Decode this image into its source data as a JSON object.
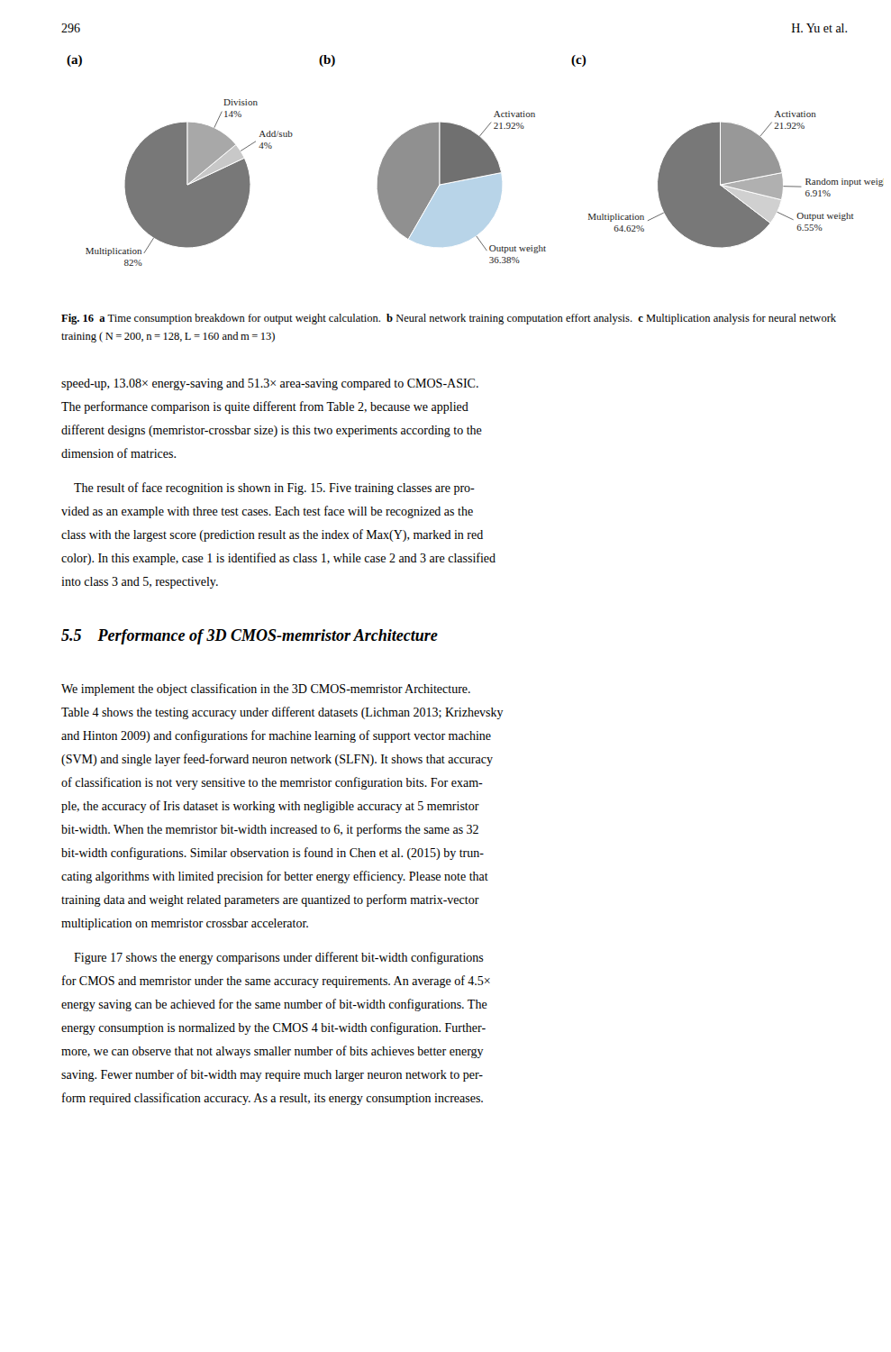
{
  "header": {
    "page_number": "296",
    "running_head": "H. Yu et al."
  },
  "chart_data": [
    {
      "type": "pie",
      "title": "(a)",
      "categories": [
        "Multiplication",
        "Add/sub",
        "Division"
      ],
      "values": [
        82,
        4,
        14
      ],
      "value_labels": [
        "82%",
        "4%",
        "14%"
      ],
      "colors": [
        "#787878",
        "#c8c8c8",
        "#a8a8a8"
      ],
      "data_labels": true
    },
    {
      "type": "pie",
      "title": "(b)",
      "categories": [
        null,
        "Output weight",
        "Activation"
      ],
      "values": [
        41.7,
        36.38,
        21.92
      ],
      "value_labels": [
        null,
        "36.38%",
        "21.92%"
      ],
      "colors": [
        "#909090",
        "#b8d4e8",
        "#707070"
      ],
      "data_labels": true
    },
    {
      "type": "pie",
      "title": "(c)",
      "categories": [
        "Multiplication",
        "Output weight",
        "Random input weight",
        "Activation"
      ],
      "values": [
        64.62,
        6.55,
        6.91,
        21.92
      ],
      "value_labels": [
        "64.62%",
        "6.55%",
        "6.91%",
        "21.92%"
      ],
      "colors": [
        "#787878",
        "#d0d0d0",
        "#b0b0b0",
        "#989898"
      ],
      "data_labels": true
    }
  ],
  "caption": {
    "label": "Fig. 16",
    "parts": [
      {
        "label": "a",
        "text": "Time consumption breakdown for output weight calculation."
      },
      {
        "label": "b",
        "text": "Neural network training computation effort analysis."
      },
      {
        "label": "c",
        "text": "Multiplication analysis for neural network training ( N = 200, n = 128, L = 160 and m = 13)"
      }
    ]
  },
  "paragraphs_before": [
    [
      "speed-up, 13.08× energy-saving and 51.3× area-saving compared to CMOS-ASIC.",
      "The performance comparison is quite different from Table 2, because we applied",
      "different designs (memristor-crossbar size) is this two experiments according to the",
      "dimension of matrices."
    ],
    [
      " The result of face recognition is shown in Fig. 15. Five training classes are pro-",
      "vided as an example with three test cases. Each test face will be recognized as the",
      "class with the largest score (prediction result as the index of Max(​Y), marked in red",
      "color). In this example, case 1 is identified as class 1, while case 2 and 3 are classified",
      "into class 3 and 5, respectively."
    ]
  ],
  "section_title": "5.5 Performance of 3D CMOS-memristor Architecture",
  "paragraphs_after": [
    [
      "We implement the object classification in the 3D CMOS-memristor Architecture.",
      "Table 4 shows the testing accuracy under different datasets (Lichman 2013; Krizhevsky",
      "and Hinton 2009) and configurations for machine learning of support vector machine",
      "(SVM) and single layer feed-forward neuron network (SLFN). It shows that accuracy",
      "of classification is not very sensitive to the memristor configuration bits. For exam-",
      "ple, the accuracy of Iris dataset is working with negligible accuracy at 5 memristor",
      "bit-width. When the memristor bit-width increased to 6, it performs the same as 32",
      "bit-width configurations. Similar observation is found in Chen et al. (2015) by trun-",
      "cating algorithms with limited precision for better energy efficiency. Please note that",
      "training data and weight related parameters are quantized to perform matrix-vector",
      "multiplication on memristor crossbar accelerator."
    ],
    [
      " Figure 17 shows the energy comparisons under different bit-width configurations",
      "for CMOS and memristor under the same accuracy requirements. An average of 4.5×",
      "energy saving can be achieved for the same number of bit-width configurations. The",
      "energy consumption is normalized by the CMOS 4 bit-width configuration. Further-",
      "more, we can observe that not always smaller number of bits achieves better energy",
      "saving. Fewer number of bit-width may require much larger neuron network to per-",
      "form required classification accuracy. As a result, its energy consumption increases."
    ]
  ]
}
